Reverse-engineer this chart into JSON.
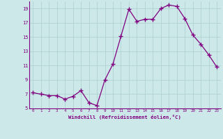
{
  "x": [
    0,
    1,
    2,
    3,
    4,
    5,
    6,
    7,
    8,
    9,
    10,
    11,
    12,
    13,
    14,
    15,
    16,
    17,
    18,
    19,
    20,
    21,
    22,
    23
  ],
  "y": [
    7.2,
    7.0,
    6.8,
    6.8,
    6.3,
    6.7,
    7.5,
    5.8,
    5.4,
    9.0,
    11.2,
    15.1,
    18.9,
    17.2,
    17.5,
    17.5,
    19.0,
    19.5,
    19.3,
    17.6,
    15.3,
    14.0,
    12.5,
    10.8
  ],
  "line_color": "#800080",
  "marker": "+",
  "marker_color": "#800080",
  "bg_color": "#cce8e8",
  "grid_color": "#aacece",
  "xlabel": "Windchill (Refroidissement éolien,°C)",
  "xlabel_color": "#800080",
  "tick_color": "#800080",
  "ylim": [
    5,
    20
  ],
  "xlim": [
    -0.5,
    23.5
  ],
  "yticks": [
    5,
    7,
    9,
    11,
    13,
    15,
    17,
    19
  ],
  "xticks": [
    0,
    1,
    2,
    3,
    4,
    5,
    6,
    7,
    8,
    9,
    10,
    11,
    12,
    13,
    14,
    15,
    16,
    17,
    18,
    19,
    20,
    21,
    22,
    23
  ]
}
